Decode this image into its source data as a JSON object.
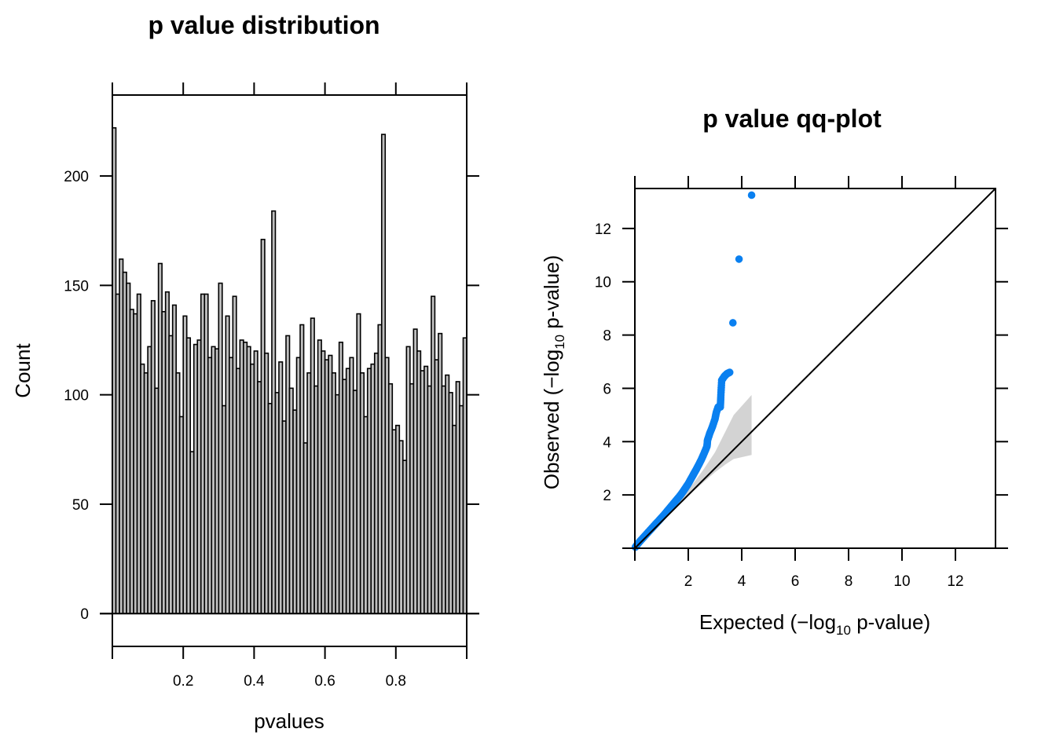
{
  "chart_data": [
    {
      "type": "bar",
      "subtype": "histogram",
      "title": "p value distribution",
      "xlabel": "pvalues",
      "ylabel": "Count",
      "xlim": [
        0,
        1
      ],
      "ylim": [
        -15,
        237
      ],
      "x_ticks": [
        0,
        0.2,
        0.4,
        0.6,
        0.8,
        1.0
      ],
      "x_tick_labels": [
        "",
        "0.2",
        "0.4",
        "0.6",
        "0.8",
        ""
      ],
      "y_ticks": [
        0,
        50,
        100,
        150,
        200
      ],
      "y_tick_labels": [
        "0",
        "50",
        "100",
        "150",
        "200"
      ],
      "bin_width": 0.01,
      "bar_fill": "#bfbfbf",
      "bar_stroke": "#000000",
      "grid": false,
      "values": [
        222,
        146,
        162,
        156,
        151,
        139,
        137,
        146,
        114,
        110,
        122,
        143,
        103,
        160,
        138,
        147,
        127,
        141,
        110,
        90,
        136,
        126,
        74,
        123,
        125,
        146,
        146,
        117,
        122,
        121,
        151,
        95,
        136,
        117,
        145,
        112,
        125,
        124,
        122,
        114,
        120,
        106,
        171,
        119,
        96,
        184,
        101,
        115,
        88,
        127,
        103,
        93,
        117,
        132,
        78,
        110,
        135,
        104,
        125,
        120,
        116,
        118,
        110,
        100,
        124,
        107,
        112,
        117,
        102,
        137,
        110,
        90,
        112,
        114,
        119,
        132,
        219,
        117,
        105,
        84,
        86,
        79,
        70,
        122,
        105,
        130,
        120,
        111,
        113,
        104,
        145,
        116,
        128,
        104,
        109,
        101,
        86,
        106,
        95,
        126
      ]
    },
    {
      "type": "scatter",
      "subtype": "qq-plot",
      "title": "p value qq-plot",
      "xlabel": "Expected (−log10 p-value)",
      "ylabel": "Observed (−log10 p-value)",
      "xlabel_parts": {
        "prefix": "Expected (−log",
        "sub": "10",
        "suffix": " p-value)"
      },
      "ylabel_parts": {
        "prefix": "Observed (−log",
        "sub": "10",
        "suffix": " p-value)"
      },
      "xlim": [
        0,
        13.5
      ],
      "ylim": [
        0,
        13.5
      ],
      "x_ticks": [
        2,
        4,
        6,
        8,
        10,
        12
      ],
      "x_tick_labels": [
        "2",
        "4",
        "6",
        "8",
        "10",
        "12"
      ],
      "y_ticks": [
        2,
        4,
        6,
        8,
        10,
        12
      ],
      "y_tick_labels": [
        "2",
        "4",
        "6",
        "8",
        "10",
        "12"
      ],
      "point_color": "#0a80f0",
      "reference_line": {
        "from": [
          0,
          0
        ],
        "to": [
          13.5,
          13.5
        ],
        "color": "#000000"
      },
      "confidence_band": {
        "color": "#d3d3d3",
        "upper": [
          [
            1.4,
            1.45
          ],
          [
            1.8,
            1.95
          ],
          [
            2.2,
            2.45
          ],
          [
            2.6,
            3.0
          ],
          [
            3.0,
            3.6
          ],
          [
            3.4,
            4.4
          ],
          [
            3.7,
            5.0
          ],
          [
            4.37,
            5.75
          ]
        ],
        "lower": [
          [
            1.4,
            1.4
          ],
          [
            1.8,
            1.75
          ],
          [
            2.2,
            2.15
          ],
          [
            2.6,
            2.5
          ],
          [
            3.0,
            2.85
          ],
          [
            3.4,
            3.15
          ],
          [
            3.7,
            3.35
          ],
          [
            4.37,
            3.5
          ]
        ]
      },
      "points": [
        [
          0.02,
          0.04
        ],
        [
          0.1,
          0.15
        ],
        [
          0.2,
          0.27
        ],
        [
          0.3,
          0.38
        ],
        [
          0.4,
          0.49
        ],
        [
          0.5,
          0.6
        ],
        [
          0.6,
          0.71
        ],
        [
          0.7,
          0.82
        ],
        [
          0.8,
          0.93
        ],
        [
          0.9,
          1.04
        ],
        [
          1.0,
          1.15
        ],
        [
          1.1,
          1.26
        ],
        [
          1.2,
          1.38
        ],
        [
          1.3,
          1.5
        ],
        [
          1.4,
          1.62
        ],
        [
          1.5,
          1.74
        ],
        [
          1.6,
          1.86
        ],
        [
          1.7,
          1.98
        ],
        [
          1.8,
          2.12
        ],
        [
          1.9,
          2.27
        ],
        [
          2.0,
          2.42
        ],
        [
          2.1,
          2.6
        ],
        [
          2.2,
          2.78
        ],
        [
          2.3,
          2.96
        ],
        [
          2.4,
          3.15
        ],
        [
          2.5,
          3.35
        ],
        [
          2.6,
          3.58
        ],
        [
          2.7,
          3.82
        ],
        [
          2.72,
          4.05
        ],
        [
          2.8,
          4.3
        ],
        [
          2.9,
          4.55
        ],
        [
          3.0,
          4.85
        ],
        [
          3.05,
          5.1
        ],
        [
          3.12,
          5.3
        ],
        [
          3.2,
          5.3
        ],
        [
          3.22,
          5.75
        ],
        [
          3.25,
          6.3
        ],
        [
          3.35,
          6.45
        ],
        [
          3.45,
          6.55
        ],
        [
          3.55,
          6.6
        ],
        [
          3.67,
          8.46
        ],
        [
          3.9,
          10.85
        ],
        [
          4.37,
          13.25
        ]
      ]
    }
  ]
}
